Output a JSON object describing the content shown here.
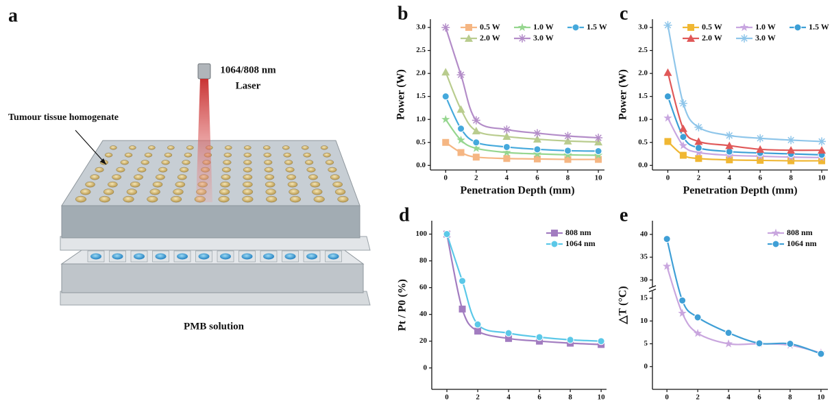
{
  "panel_a": {
    "label": "a",
    "laser": [
      "1064/808 nm",
      "Laser"
    ],
    "annotation": "Tumour tissue homogenate",
    "caption": "PMB solution"
  },
  "chart_data": [
    {
      "type": "line",
      "panel": "b",
      "xlabel": "Penetration Depth (mm)",
      "ylabel": "Power (W)",
      "x": [
        0,
        1,
        2,
        4,
        6,
        8,
        10
      ],
      "xlim": [
        -1,
        10.4
      ],
      "xticks": [
        0,
        2,
        4,
        6,
        8,
        10
      ],
      "ylim": [
        -0.1,
        3.18
      ],
      "yticks": [
        {
          "value": 0,
          "label": "0.0"
        },
        0.5,
        {
          "value": 1,
          "label": "1.0"
        },
        1.5,
        {
          "value": 2,
          "label": "2.0"
        },
        2.5,
        {
          "value": 3,
          "label": "3.0"
        }
      ],
      "legend": "upper center",
      "legend_cols": 3,
      "series": [
        {
          "name": "0.5 W",
          "color": "#f5b683",
          "marker": "square",
          "values": [
            0.5,
            0.28,
            0.18,
            0.15,
            0.14,
            0.13,
            0.13
          ]
        },
        {
          "name": "1.0 W",
          "color": "#96d68f",
          "marker": "star",
          "values": [
            1.0,
            0.55,
            0.37,
            0.28,
            0.25,
            0.23,
            0.22
          ]
        },
        {
          "name": "1.5 W",
          "color": "#45a9dc",
          "marker": "circle",
          "values": [
            1.5,
            0.8,
            0.5,
            0.4,
            0.35,
            0.32,
            0.31
          ]
        },
        {
          "name": "2.0 W",
          "color": "#b9cc8e",
          "marker": "triangle",
          "values": [
            2.03,
            1.22,
            0.75,
            0.63,
            0.57,
            0.53,
            0.51
          ]
        },
        {
          "name": "3.0 W",
          "color": "#b38cc8",
          "marker": "asterisk",
          "values": [
            3.0,
            1.97,
            0.98,
            0.78,
            0.7,
            0.64,
            0.6
          ]
        }
      ]
    },
    {
      "type": "line",
      "panel": "c",
      "xlabel": "Penetration Depth (mm)",
      "ylabel": "Power (W)",
      "x": [
        0,
        1,
        2,
        4,
        6,
        8,
        10
      ],
      "xlim": [
        -1,
        10.4
      ],
      "xticks": [
        0,
        2,
        4,
        6,
        8,
        10
      ],
      "ylim": [
        -0.1,
        3.18
      ],
      "yticks": [
        {
          "value": 0,
          "label": "0.0"
        },
        0.5,
        {
          "value": 1,
          "label": "1.0"
        },
        1.5,
        {
          "value": 2,
          "label": "2.0"
        },
        2.5,
        {
          "value": 3,
          "label": "3.0"
        }
      ],
      "legend": "upper center",
      "legend_cols": 3,
      "series": [
        {
          "name": "0.5 W",
          "color": "#f0b733",
          "marker": "square",
          "values": [
            0.52,
            0.22,
            0.15,
            0.12,
            0.11,
            0.1,
            0.1
          ]
        },
        {
          "name": "1.0 W",
          "color": "#c8a6e0",
          "marker": "star",
          "values": [
            1.03,
            0.43,
            0.28,
            0.22,
            0.2,
            0.18,
            0.17
          ]
        },
        {
          "name": "1.5 W",
          "color": "#3c9fd6",
          "marker": "circle",
          "values": [
            1.5,
            0.62,
            0.38,
            0.3,
            0.27,
            0.25,
            0.23
          ]
        },
        {
          "name": "2.0 W",
          "color": "#e05858",
          "marker": "triangle",
          "values": [
            2.02,
            0.8,
            0.52,
            0.43,
            0.35,
            0.33,
            0.33
          ]
        },
        {
          "name": "3.0 W",
          "color": "#8fc6ea",
          "marker": "asterisk",
          "values": [
            3.05,
            1.35,
            0.83,
            0.65,
            0.59,
            0.55,
            0.52
          ]
        }
      ]
    },
    {
      "type": "line",
      "panel": "d",
      "xlabel": "Penetration Depth (mm)",
      "ylabel": "Pt / P0 (%)",
      "x": [
        0,
        1,
        2,
        4,
        6,
        8,
        10
      ],
      "xlim": [
        -0.98,
        10.35
      ],
      "xticks": [
        0,
        2,
        4,
        6,
        8,
        10
      ],
      "ylim": [
        -16,
        110
      ],
      "yticks": [
        0,
        20,
        40,
        60,
        80,
        100
      ],
      "legend": "upper right",
      "legend_cols": 1,
      "series": [
        {
          "name": "808 nm",
          "color": "#a27cc0",
          "marker": "square",
          "values": [
            100,
            44,
            27.5,
            22,
            20,
            18.5,
            17.5
          ]
        },
        {
          "name": "1064 nm",
          "color": "#5bc8e8",
          "marker": "circle",
          "values": [
            100,
            65,
            32.5,
            26,
            23,
            21,
            20
          ]
        }
      ]
    },
    {
      "type": "line",
      "panel": "e",
      "xlabel": "Penetration Depth (mm)",
      "ylabel": "△T (°C)",
      "x": [
        0,
        1,
        2,
        4,
        6,
        8,
        10
      ],
      "xlim": [
        -0.94,
        10.45
      ],
      "xticks": [
        0,
        2,
        4,
        6,
        8,
        10
      ],
      "ylim": [
        -5,
        43
      ],
      "ybreak": [
        17,
        28
      ],
      "yticks": [
        0,
        5,
        10,
        15,
        30,
        35,
        40
      ],
      "legend": "upper right",
      "legend_cols": 1,
      "series": [
        {
          "name": "808 nm",
          "color": "#c9a6de",
          "marker": "star",
          "values": [
            33,
            11.7,
            7.3,
            5,
            5,
            4.7,
            3.0
          ]
        },
        {
          "name": "1064 nm",
          "color": "#3f9fd6",
          "marker": "circle",
          "values": [
            39,
            14.5,
            10.8,
            7.4,
            5.1,
            5.0,
            2.8
          ]
        }
      ]
    }
  ]
}
